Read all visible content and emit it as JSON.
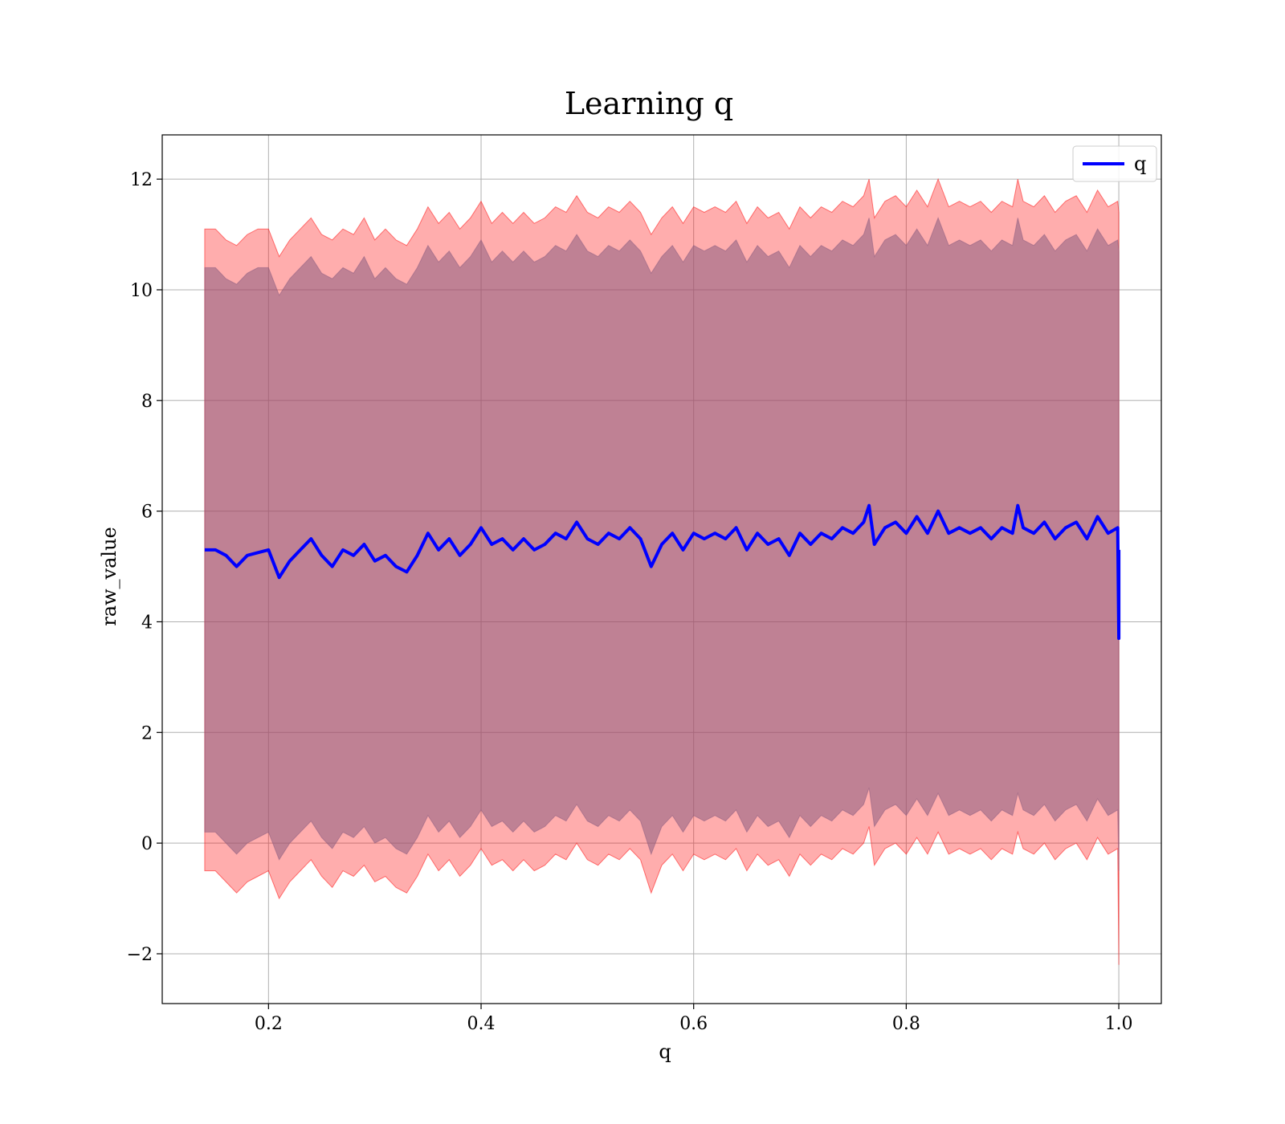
{
  "chart_data": {
    "type": "line",
    "title": "Learning q",
    "xlabel": "q",
    "ylabel": "raw_value",
    "xlim": [
      0.1,
      1.04
    ],
    "ylim": [
      -2.9,
      12.8
    ],
    "xticks": [
      0.2,
      0.4,
      0.6,
      0.8,
      1.0
    ],
    "xtick_labels": [
      "0.2",
      "0.4",
      "0.6",
      "0.8",
      "1.0"
    ],
    "yticks": [
      -2,
      0,
      2,
      4,
      6,
      8,
      10,
      12
    ],
    "ytick_labels": [
      "−2",
      "0",
      "2",
      "4",
      "6",
      "8",
      "10",
      "12"
    ],
    "grid": true,
    "legend": {
      "position": "top-right",
      "entries": [
        "q"
      ]
    },
    "series": [
      {
        "name": "q",
        "color": "#0000ff",
        "x": [
          0.14,
          0.15,
          0.16,
          0.17,
          0.18,
          0.19,
          0.2,
          0.21,
          0.22,
          0.23,
          0.24,
          0.25,
          0.26,
          0.27,
          0.28,
          0.29,
          0.3,
          0.31,
          0.32,
          0.33,
          0.34,
          0.35,
          0.36,
          0.37,
          0.38,
          0.39,
          0.4,
          0.41,
          0.42,
          0.43,
          0.44,
          0.45,
          0.46,
          0.47,
          0.48,
          0.49,
          0.5,
          0.51,
          0.52,
          0.53,
          0.54,
          0.55,
          0.56,
          0.57,
          0.58,
          0.59,
          0.6,
          0.61,
          0.62,
          0.63,
          0.64,
          0.65,
          0.66,
          0.67,
          0.68,
          0.69,
          0.7,
          0.71,
          0.72,
          0.73,
          0.74,
          0.75,
          0.76,
          0.765,
          0.77,
          0.78,
          0.79,
          0.8,
          0.81,
          0.82,
          0.83,
          0.84,
          0.85,
          0.86,
          0.87,
          0.88,
          0.89,
          0.9,
          0.905,
          0.91,
          0.92,
          0.93,
          0.94,
          0.95,
          0.96,
          0.97,
          0.98,
          0.99,
          0.999,
          1.0,
          1.0
        ],
        "y": [
          5.3,
          5.3,
          5.2,
          5.0,
          5.2,
          5.25,
          5.3,
          4.8,
          5.1,
          5.3,
          5.5,
          5.2,
          5.0,
          5.3,
          5.2,
          5.4,
          5.1,
          5.2,
          5.0,
          4.9,
          5.2,
          5.6,
          5.3,
          5.5,
          5.2,
          5.4,
          5.7,
          5.4,
          5.5,
          5.3,
          5.5,
          5.3,
          5.4,
          5.6,
          5.5,
          5.8,
          5.5,
          5.4,
          5.6,
          5.5,
          5.7,
          5.5,
          5.0,
          5.4,
          5.6,
          5.3,
          5.6,
          5.5,
          5.6,
          5.5,
          5.7,
          5.3,
          5.6,
          5.4,
          5.5,
          5.2,
          5.6,
          5.4,
          5.6,
          5.5,
          5.7,
          5.6,
          5.8,
          6.1,
          5.4,
          5.7,
          5.8,
          5.6,
          5.9,
          5.6,
          6.0,
          5.6,
          5.7,
          5.6,
          5.7,
          5.5,
          5.7,
          5.6,
          6.1,
          5.7,
          5.6,
          5.8,
          5.5,
          5.7,
          5.8,
          5.5,
          5.9,
          5.6,
          5.7,
          3.7,
          5.3
        ]
      }
    ],
    "bands": [
      {
        "color": "#ff0000",
        "opacity": 0.32,
        "x": [
          0.14,
          0.15,
          0.16,
          0.17,
          0.18,
          0.19,
          0.2,
          0.21,
          0.22,
          0.23,
          0.24,
          0.25,
          0.26,
          0.27,
          0.28,
          0.29,
          0.3,
          0.31,
          0.32,
          0.33,
          0.34,
          0.35,
          0.36,
          0.37,
          0.38,
          0.39,
          0.4,
          0.41,
          0.42,
          0.43,
          0.44,
          0.45,
          0.46,
          0.47,
          0.48,
          0.49,
          0.5,
          0.51,
          0.52,
          0.53,
          0.54,
          0.55,
          0.56,
          0.57,
          0.58,
          0.59,
          0.6,
          0.61,
          0.62,
          0.63,
          0.64,
          0.65,
          0.66,
          0.67,
          0.68,
          0.69,
          0.7,
          0.71,
          0.72,
          0.73,
          0.74,
          0.75,
          0.76,
          0.765,
          0.77,
          0.78,
          0.79,
          0.8,
          0.81,
          0.82,
          0.83,
          0.84,
          0.85,
          0.86,
          0.87,
          0.88,
          0.89,
          0.9,
          0.905,
          0.91,
          0.92,
          0.93,
          0.94,
          0.95,
          0.96,
          0.97,
          0.98,
          0.99,
          0.999,
          1.0
        ],
        "upper": [
          11.1,
          11.1,
          10.9,
          10.8,
          11.0,
          11.1,
          11.1,
          10.6,
          10.9,
          11.1,
          11.3,
          11.0,
          10.9,
          11.1,
          11.0,
          11.3,
          10.9,
          11.1,
          10.9,
          10.8,
          11.1,
          11.5,
          11.2,
          11.4,
          11.1,
          11.3,
          11.6,
          11.2,
          11.4,
          11.2,
          11.4,
          11.2,
          11.3,
          11.5,
          11.4,
          11.7,
          11.4,
          11.3,
          11.5,
          11.4,
          11.6,
          11.4,
          11.0,
          11.3,
          11.5,
          11.2,
          11.5,
          11.4,
          11.5,
          11.4,
          11.6,
          11.2,
          11.5,
          11.3,
          11.4,
          11.1,
          11.5,
          11.3,
          11.5,
          11.4,
          11.6,
          11.5,
          11.7,
          12.0,
          11.3,
          11.6,
          11.7,
          11.5,
          11.8,
          11.5,
          12.0,
          11.5,
          11.6,
          11.5,
          11.6,
          11.4,
          11.6,
          11.5,
          12.0,
          11.6,
          11.5,
          11.7,
          11.4,
          11.6,
          11.7,
          11.4,
          11.8,
          11.5,
          11.6,
          11.4
        ],
        "lower": [
          -0.5,
          -0.5,
          -0.7,
          -0.9,
          -0.7,
          -0.6,
          -0.5,
          -1.0,
          -0.7,
          -0.5,
          -0.3,
          -0.6,
          -0.8,
          -0.5,
          -0.6,
          -0.4,
          -0.7,
          -0.6,
          -0.8,
          -0.9,
          -0.6,
          -0.2,
          -0.5,
          -0.3,
          -0.6,
          -0.4,
          -0.1,
          -0.4,
          -0.3,
          -0.5,
          -0.3,
          -0.5,
          -0.4,
          -0.2,
          -0.3,
          0.0,
          -0.3,
          -0.4,
          -0.2,
          -0.3,
          -0.1,
          -0.3,
          -0.9,
          -0.4,
          -0.2,
          -0.5,
          -0.2,
          -0.3,
          -0.2,
          -0.3,
          -0.1,
          -0.5,
          -0.2,
          -0.4,
          -0.3,
          -0.6,
          -0.2,
          -0.4,
          -0.2,
          -0.3,
          -0.1,
          -0.2,
          0.0,
          0.3,
          -0.4,
          -0.1,
          0.0,
          -0.2,
          0.1,
          -0.2,
          0.2,
          -0.2,
          -0.1,
          -0.2,
          -0.1,
          -0.3,
          -0.1,
          -0.2,
          0.2,
          -0.1,
          -0.2,
          0.0,
          -0.3,
          -0.1,
          0.0,
          -0.3,
          0.1,
          -0.2,
          -0.1,
          -2.2
        ]
      },
      {
        "color": "#8a5c80",
        "opacity": 0.55,
        "x": [
          0.14,
          0.15,
          0.16,
          0.17,
          0.18,
          0.19,
          0.2,
          0.21,
          0.22,
          0.23,
          0.24,
          0.25,
          0.26,
          0.27,
          0.28,
          0.29,
          0.3,
          0.31,
          0.32,
          0.33,
          0.34,
          0.35,
          0.36,
          0.37,
          0.38,
          0.39,
          0.4,
          0.41,
          0.42,
          0.43,
          0.44,
          0.45,
          0.46,
          0.47,
          0.48,
          0.49,
          0.5,
          0.51,
          0.52,
          0.53,
          0.54,
          0.55,
          0.56,
          0.57,
          0.58,
          0.59,
          0.6,
          0.61,
          0.62,
          0.63,
          0.64,
          0.65,
          0.66,
          0.67,
          0.68,
          0.69,
          0.7,
          0.71,
          0.72,
          0.73,
          0.74,
          0.75,
          0.76,
          0.765,
          0.77,
          0.78,
          0.79,
          0.8,
          0.81,
          0.82,
          0.83,
          0.84,
          0.85,
          0.86,
          0.87,
          0.88,
          0.89,
          0.9,
          0.905,
          0.91,
          0.92,
          0.93,
          0.94,
          0.95,
          0.96,
          0.97,
          0.98,
          0.99,
          0.999,
          1.0
        ],
        "upper": [
          10.4,
          10.4,
          10.2,
          10.1,
          10.3,
          10.4,
          10.4,
          9.9,
          10.2,
          10.4,
          10.6,
          10.3,
          10.2,
          10.4,
          10.3,
          10.6,
          10.2,
          10.4,
          10.2,
          10.1,
          10.4,
          10.8,
          10.5,
          10.7,
          10.4,
          10.6,
          10.9,
          10.5,
          10.7,
          10.5,
          10.7,
          10.5,
          10.6,
          10.8,
          10.7,
          11.0,
          10.7,
          10.6,
          10.8,
          10.7,
          10.9,
          10.7,
          10.3,
          10.6,
          10.8,
          10.5,
          10.8,
          10.7,
          10.8,
          10.7,
          10.9,
          10.5,
          10.8,
          10.6,
          10.7,
          10.4,
          10.8,
          10.6,
          10.8,
          10.7,
          10.9,
          10.8,
          11.0,
          11.3,
          10.6,
          10.9,
          11.0,
          10.8,
          11.1,
          10.8,
          11.3,
          10.8,
          10.9,
          10.8,
          10.9,
          10.7,
          10.9,
          10.8,
          11.3,
          10.9,
          10.8,
          11.0,
          10.7,
          10.9,
          11.0,
          10.7,
          11.1,
          10.8,
          10.9,
          10.7
        ],
        "lower": [
          0.2,
          0.2,
          0.0,
          -0.2,
          0.0,
          0.1,
          0.2,
          -0.3,
          0.0,
          0.2,
          0.4,
          0.1,
          -0.1,
          0.2,
          0.1,
          0.3,
          0.0,
          0.1,
          -0.1,
          -0.2,
          0.1,
          0.5,
          0.2,
          0.4,
          0.1,
          0.3,
          0.6,
          0.3,
          0.4,
          0.2,
          0.4,
          0.2,
          0.3,
          0.5,
          0.4,
          0.7,
          0.4,
          0.3,
          0.5,
          0.4,
          0.6,
          0.4,
          -0.2,
          0.3,
          0.5,
          0.2,
          0.5,
          0.4,
          0.5,
          0.4,
          0.6,
          0.2,
          0.5,
          0.3,
          0.4,
          0.1,
          0.5,
          0.3,
          0.5,
          0.4,
          0.6,
          0.5,
          0.7,
          1.0,
          0.3,
          0.6,
          0.7,
          0.5,
          0.8,
          0.5,
          0.9,
          0.5,
          0.6,
          0.5,
          0.6,
          0.4,
          0.6,
          0.5,
          0.9,
          0.6,
          0.5,
          0.7,
          0.4,
          0.6,
          0.7,
          0.4,
          0.8,
          0.5,
          0.6,
          -0.5
        ]
      }
    ]
  }
}
